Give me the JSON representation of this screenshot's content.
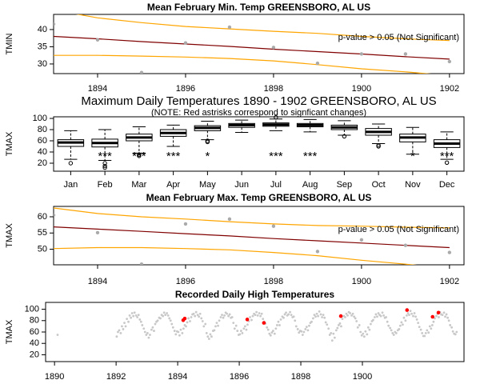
{
  "chart_data": [
    {
      "type": "trend",
      "title": "Mean February Min. Temp GREENSBORO, AL US",
      "ylabel": "TMIN",
      "x": [
        1893,
        1894,
        1895,
        1896,
        1897,
        1898,
        1899,
        1900,
        1901,
        1902
      ],
      "values": [
        41.6,
        37.0,
        27.5,
        36.1,
        40.7,
        34.8,
        30.2,
        32.9,
        32.9,
        30.7
      ],
      "fit": [
        38.0,
        37.3,
        36.5,
        35.8,
        35.1,
        34.3,
        33.6,
        32.9,
        32.1,
        31.4
      ],
      "band_upper": [
        45.7,
        43.4,
        42.0,
        40.9,
        40.2,
        39.5,
        38.9,
        38.0,
        37.3,
        36.8
      ],
      "band_lower": [
        32.5,
        32.5,
        32.3,
        32.0,
        31.6,
        30.9,
        29.8,
        28.6,
        27.7,
        26.6
      ],
      "annotation": "p-value > 0.05 (Not Significant)",
      "point_color": "#aaaaaa",
      "fit_color": "#800000",
      "band_color": "#ffa500",
      "xlim": [
        1893,
        1902.33
      ],
      "ylim": [
        27.2,
        44.4
      ],
      "xticks": [
        1894,
        1896,
        1898,
        1900,
        1902
      ],
      "yticks": [
        30,
        35,
        40
      ]
    },
    {
      "type": "boxplot",
      "title": "Maximum Daily Temperatures 1890 - 1902 GREENSBORO, AL US",
      "subtitle": "(NOTE: Red astrisks correspond to signficant changes)",
      "ylabel": "TMAX",
      "categories": [
        "Jan",
        "Feb",
        "Mar",
        "Apr",
        "May",
        "Jun",
        "Jul",
        "Aug",
        "Sep",
        "Oct",
        "Nov",
        "Dec"
      ],
      "whisker_low": [
        27,
        25,
        38,
        50,
        62,
        75,
        78,
        76,
        70,
        55,
        36,
        27
      ],
      "q1": [
        50,
        49,
        60,
        68,
        78,
        84,
        86,
        85,
        80,
        70,
        58,
        48
      ],
      "median": [
        57,
        56,
        66,
        74,
        83,
        88,
        89,
        88,
        84,
        76,
        66,
        55
      ],
      "q3": [
        62,
        63,
        72,
        80,
        87,
        91,
        92,
        91,
        88,
        82,
        72,
        62
      ],
      "whisker_high": [
        78,
        80,
        85,
        88,
        95,
        97,
        99,
        98,
        96,
        90,
        84,
        76
      ],
      "outliers": [
        [
          20
        ],
        [
          20,
          15,
          12
        ],
        [
          35,
          33
        ],
        [],
        [
          60,
          58
        ],
        [],
        [
          102
        ],
        [],
        [
          68
        ],
        [
          52,
          50
        ],
        [],
        [
          21
        ]
      ],
      "significance": [
        null,
        "***",
        "***",
        "***",
        "*",
        null,
        "***",
        "***",
        null,
        null,
        "*",
        "***"
      ],
      "significance_color": "#ff0000",
      "ylim": [
        5.7,
        102.9
      ],
      "yticks": [
        20,
        40,
        60,
        80,
        100
      ]
    },
    {
      "type": "trend",
      "title": "Mean February Max. Temp GREENSBORO, AL US",
      "ylabel": "TMAX",
      "x": [
        1893,
        1894,
        1895,
        1896,
        1897,
        1898,
        1899,
        1900,
        1901,
        1902
      ],
      "values": [
        60.5,
        55.1,
        45.4,
        57.8,
        59.3,
        57.1,
        49.3,
        52.9,
        51.2,
        49.0
      ],
      "fit": [
        56.9,
        56.2,
        55.5,
        54.8,
        54.1,
        53.3,
        52.6,
        51.9,
        51.2,
        50.5
      ],
      "band_upper": [
        62.7,
        61.0,
        60.0,
        59.3,
        58.5,
        57.8,
        57.3,
        57.1,
        56.8,
        56.6
      ],
      "band_lower": [
        50.2,
        50.5,
        50.5,
        50.2,
        49.8,
        49.0,
        48.0,
        46.6,
        45.4,
        44.1
      ],
      "annotation": "p-value > 0.05 (Not Significant)",
      "point_color": "#aaaaaa",
      "fit_color": "#800000",
      "band_color": "#ffa500",
      "xlim": [
        1893,
        1902.33
      ],
      "ylim": [
        45.2,
        63.2
      ],
      "xticks": [
        1894,
        1896,
        1898,
        1900,
        1902
      ],
      "yticks": [
        50,
        55,
        60
      ]
    },
    {
      "type": "scatter",
      "title": "Recorded Daily High Temperatures",
      "ylabel": "TMAX",
      "color": "#c8c8c8",
      "x": [
        1890.1,
        1892.02,
        1892.06,
        1892.1,
        1892.15,
        1892.19,
        1892.23,
        1892.27,
        1892.31,
        1892.35,
        1892.4,
        1892.44,
        1892.48,
        1892.52,
        1892.56,
        1892.6,
        1892.65,
        1892.69,
        1892.73,
        1892.77,
        1892.81,
        1892.85,
        1892.9,
        1892.94,
        1892.98,
        1893.02,
        1893.06,
        1893.1,
        1893.15,
        1893.19,
        1893.23,
        1893.27,
        1893.31,
        1893.35,
        1893.4,
        1893.44,
        1893.48,
        1893.52,
        1893.56,
        1893.6,
        1893.65,
        1893.69,
        1893.73,
        1893.77,
        1893.81,
        1893.85,
        1893.9,
        1893.94,
        1893.98,
        1894.02,
        1894.06,
        1894.1,
        1894.15,
        1894.19,
        1894.23,
        1894.27,
        1894.31,
        1894.35,
        1894.4,
        1894.44,
        1894.48,
        1894.52,
        1894.56,
        1894.6,
        1894.65,
        1894.69,
        1894.73,
        1894.77,
        1894.81,
        1894.85,
        1894.9,
        1894.94,
        1894.98,
        1895.02,
        1895.06,
        1895.1,
        1895.15,
        1895.19,
        1895.23,
        1895.27,
        1895.31,
        1895.35,
        1895.4,
        1895.44,
        1895.48,
        1895.52,
        1895.56,
        1895.6,
        1895.65,
        1895.69,
        1895.73,
        1895.77,
        1895.81,
        1895.85,
        1895.9,
        1895.94,
        1895.98,
        1896.02,
        1896.06,
        1896.1,
        1896.15,
        1896.19,
        1896.23,
        1896.27,
        1896.31,
        1896.35,
        1896.4,
        1896.44,
        1896.48,
        1896.52,
        1896.56,
        1896.6,
        1896.65,
        1896.69,
        1896.73,
        1896.77,
        1896.81,
        1896.85,
        1896.9,
        1896.94,
        1896.98,
        1897.02,
        1897.06,
        1897.1,
        1897.15,
        1897.19,
        1897.23,
        1897.27,
        1897.31,
        1897.35,
        1897.4,
        1897.44,
        1897.48,
        1897.52,
        1897.56,
        1897.6,
        1897.65,
        1897.69,
        1897.73,
        1897.77,
        1897.81,
        1897.85,
        1897.9,
        1897.94,
        1897.98,
        1898.02,
        1898.06,
        1898.1,
        1898.15,
        1898.19,
        1898.23,
        1898.27,
        1898.31,
        1898.35,
        1898.4,
        1898.44,
        1898.48,
        1898.52,
        1898.56,
        1898.6,
        1898.65,
        1898.69,
        1898.73,
        1898.77,
        1898.81,
        1898.85,
        1898.9,
        1898.94,
        1898.98,
        1899.02,
        1899.06,
        1899.1,
        1899.15,
        1899.19,
        1899.23,
        1899.27,
        1899.31,
        1899.35,
        1899.4,
        1899.44,
        1899.48,
        1899.52,
        1899.56,
        1899.6,
        1899.65,
        1899.69,
        1899.73,
        1899.77,
        1899.81,
        1899.85,
        1899.9,
        1899.94,
        1899.98,
        1900.02,
        1900.06,
        1900.1,
        1900.15,
        1900.19,
        1900.23,
        1900.27,
        1900.31,
        1900.35,
        1900.4,
        1900.44,
        1900.48,
        1900.52,
        1900.56,
        1900.6,
        1900.65,
        1900.69,
        1900.73,
        1900.77,
        1900.81,
        1900.85,
        1900.9,
        1900.94,
        1900.98,
        1901.02,
        1901.06,
        1901.1,
        1901.15,
        1901.19,
        1901.23,
        1901.27,
        1901.31,
        1901.35,
        1901.4,
        1901.44,
        1901.48,
        1901.52,
        1901.56,
        1901.6,
        1901.65,
        1901.69,
        1901.73,
        1901.77,
        1901.81,
        1901.85,
        1901.9,
        1901.94,
        1901.98,
        1902.02,
        1902.06,
        1902.1,
        1902.15,
        1902.19,
        1902.23,
        1902.27,
        1902.31,
        1902.35,
        1902.4,
        1902.44,
        1902.48,
        1902.52,
        1902.56,
        1902.6,
        1902.65,
        1902.69,
        1902.73,
        1902.77,
        1902.81,
        1902.85,
        1902.9,
        1902.94,
        1902.98,
        1903.02,
        1903.06
      ],
      "values": [
        55,
        52,
        60,
        63,
        58,
        70,
        65,
        76,
        70,
        83,
        78,
        89,
        85,
        93,
        88,
        94,
        89,
        86,
        90,
        82,
        78,
        72,
        66,
        60,
        55,
        58,
        50,
        55,
        64,
        68,
        62,
        74,
        78,
        80,
        85,
        84,
        90,
        88,
        94,
        90,
        93,
        89,
        84,
        80,
        74,
        68,
        62,
        56,
        61,
        60,
        54,
        64,
        58,
        66,
        72,
        70,
        77,
        84,
        79,
        86,
        91,
        92,
        88,
        95,
        90,
        87,
        92,
        84,
        79,
        70,
        74,
        58,
        52,
        48,
        56,
        52,
        62,
        63,
        70,
        76,
        71,
        80,
        86,
        90,
        85,
        89,
        94,
        92,
        88,
        91,
        85,
        86,
        76,
        66,
        71,
        62,
        55,
        56,
        62,
        58,
        66,
        70,
        64,
        73,
        79,
        86,
        81,
        88,
        92,
        90,
        95,
        89,
        93,
        88,
        92,
        83,
        78,
        75,
        68,
        64,
        57,
        54,
        59,
        62,
        57,
        66,
        72,
        78,
        72,
        82,
        87,
        85,
        91,
        94,
        89,
        91,
        95,
        90,
        86,
        87,
        80,
        70,
        65,
        59,
        62,
        61,
        55,
        60,
        65,
        69,
        63,
        71,
        76,
        78,
        84,
        90,
        87,
        92,
        88,
        96,
        91,
        86,
        90,
        85,
        77,
        73,
        66,
        55,
        58,
        45,
        57,
        50,
        63,
        67,
        72,
        75,
        70,
        83,
        88,
        86,
        92,
        89,
        95,
        93,
        89,
        92,
        87,
        84,
        79,
        68,
        72,
        60,
        54,
        57,
        52,
        61,
        56,
        68,
        64,
        74,
        79,
        81,
        86,
        91,
        87,
        93,
        90,
        88,
        94,
        89,
        85,
        86,
        78,
        71,
        67,
        63,
        58,
        55,
        60,
        58,
        63,
        65,
        71,
        77,
        73,
        85,
        80,
        89,
        93,
        90,
        97,
        92,
        88,
        93,
        87,
        82,
        76,
        69,
        64,
        58,
        53,
        53,
        58,
        63,
        59,
        70,
        66,
        72,
        78,
        84,
        88,
        92,
        86,
        95,
        91,
        90,
        94,
        87,
        91,
        85,
        80,
        72,
        68,
        61,
        57,
        56,
        60
      ],
      "highlight": {
        "color": "#ff0000",
        "x": [
          1894.18,
          1894.23,
          1896.26,
          1896.8,
          1899.3,
          1901.45,
          1902.28,
          1902.47
        ],
        "values": [
          80.7,
          83.7,
          82,
          76,
          88,
          98.5,
          86.7,
          94
        ]
      },
      "xlim": [
        1889.71,
        1903.3
      ],
      "ylim": [
        8,
        112
      ],
      "xticks": [
        1890,
        1892,
        1894,
        1896,
        1898,
        1900
      ],
      "yticks": [
        20,
        40,
        60,
        80,
        100
      ]
    }
  ]
}
